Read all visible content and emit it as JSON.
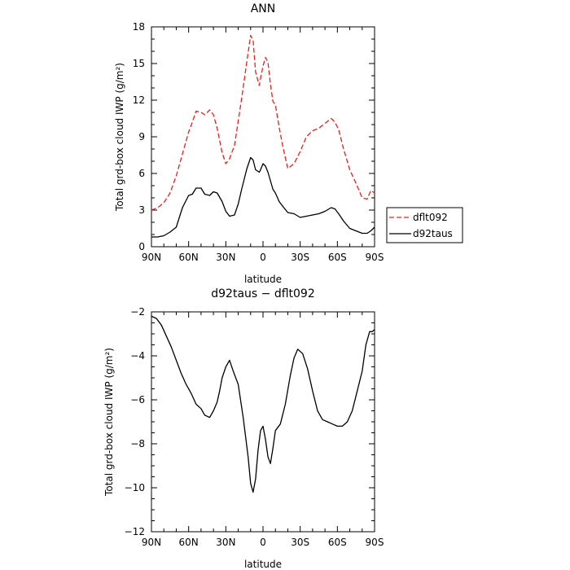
{
  "chart_data": [
    {
      "type": "line",
      "title": "ANN",
      "xlabel": "latitude",
      "ylabel": "Total grd-box cloud IWP (g/m²)",
      "x_tick_labels": [
        "90N",
        "60N",
        "30N",
        "0",
        "30S",
        "60S",
        "90S"
      ],
      "y_tick_labels": [
        "0",
        "3",
        "6",
        "9",
        "12",
        "15",
        "18"
      ],
      "xlim": [
        90,
        -90
      ],
      "ylim": [
        0,
        18
      ],
      "grid": false,
      "legend_position": "right-outside",
      "x": [
        90,
        85,
        80,
        75,
        70,
        65,
        60,
        57,
        54,
        50,
        47,
        43,
        40,
        37,
        33,
        30,
        27,
        23,
        20,
        17,
        13,
        10,
        8,
        6,
        3,
        2,
        0,
        -2,
        -4,
        -6,
        -8,
        -10,
        -13,
        -16,
        -20,
        -25,
        -30,
        -35,
        -40,
        -45,
        -50,
        -55,
        -58,
        -61,
        -65,
        -70,
        -75,
        -80,
        -84,
        -87,
        -90
      ],
      "series": [
        {
          "name": "dflt092",
          "color": "#e8201a",
          "dash": "dashed",
          "values": [
            3.0,
            3.2,
            3.6,
            4.4,
            5.8,
            7.6,
            9.4,
            10.2,
            11.1,
            11.0,
            10.8,
            11.2,
            10.8,
            9.7,
            7.7,
            6.8,
            7.2,
            8.3,
            10.3,
            12.3,
            15.2,
            17.3,
            16.9,
            14.3,
            13.2,
            13.8,
            14.8,
            15.5,
            15.1,
            13.3,
            11.9,
            11.6,
            9.8,
            8.2,
            6.4,
            6.8,
            7.8,
            9.0,
            9.5,
            9.7,
            10.1,
            10.5,
            10.2,
            9.6,
            8.0,
            6.3,
            5.2,
            4.0,
            3.9,
            4.6,
            4.4
          ]
        },
        {
          "name": "d92taus",
          "color": "#000000",
          "dash": "solid",
          "values": [
            0.8,
            0.8,
            0.9,
            1.2,
            1.6,
            3.2,
            4.2,
            4.3,
            4.8,
            4.8,
            4.3,
            4.2,
            4.5,
            4.4,
            3.7,
            2.9,
            2.5,
            2.6,
            3.5,
            4.8,
            6.4,
            7.3,
            7.1,
            6.3,
            6.1,
            6.3,
            6.8,
            6.6,
            6.1,
            5.4,
            4.7,
            4.4,
            3.7,
            3.3,
            2.8,
            2.7,
            2.4,
            2.5,
            2.6,
            2.7,
            2.9,
            3.2,
            3.1,
            2.7,
            2.1,
            1.5,
            1.3,
            1.1,
            1.1,
            1.3,
            1.6
          ]
        }
      ]
    },
    {
      "type": "line",
      "title": "d92taus − dflt092",
      "xlabel": "latitude",
      "ylabel": "Total grd-box cloud IWP (g/m²)",
      "x_tick_labels": [
        "90N",
        "60N",
        "30N",
        "0",
        "30S",
        "60S",
        "90S"
      ],
      "y_tick_labels": [
        "−12",
        "−10",
        "−8",
        "−6",
        "−4",
        "−2"
      ],
      "xlim": [
        90,
        -90
      ],
      "ylim": [
        -12,
        -2
      ],
      "grid": false,
      "x": [
        90,
        86,
        82,
        78,
        74,
        70,
        66,
        62,
        58,
        54,
        50,
        47,
        43,
        40,
        37,
        35,
        33,
        30,
        27,
        24,
        20,
        16,
        12,
        10,
        8,
        6,
        4,
        2,
        0,
        -2,
        -4,
        -6,
        -8,
        -10,
        -14,
        -18,
        -22,
        -25,
        -28,
        -32,
        -36,
        -40,
        -44,
        -48,
        -52,
        -56,
        -60,
        -64,
        -68,
        -72,
        -76,
        -80,
        -83,
        -86,
        -88,
        -90
      ],
      "series": [
        {
          "name": "",
          "color": "#000000",
          "dash": "solid",
          "values": [
            -2.2,
            -2.3,
            -2.6,
            -3.1,
            -3.6,
            -4.2,
            -4.8,
            -5.3,
            -5.7,
            -6.2,
            -6.4,
            -6.7,
            -6.8,
            -6.5,
            -6.1,
            -5.6,
            -5.0,
            -4.5,
            -4.2,
            -4.7,
            -5.3,
            -6.8,
            -8.6,
            -9.8,
            -10.2,
            -9.6,
            -8.3,
            -7.4,
            -7.2,
            -7.8,
            -8.6,
            -8.9,
            -8.2,
            -7.4,
            -7.1,
            -6.2,
            -4.9,
            -4.1,
            -3.7,
            -3.9,
            -4.6,
            -5.6,
            -6.5,
            -6.9,
            -7.0,
            -7.1,
            -7.2,
            -7.2,
            -7.0,
            -6.5,
            -5.6,
            -4.7,
            -3.5,
            -2.9,
            -2.9,
            -2.8
          ]
        }
      ]
    }
  ]
}
